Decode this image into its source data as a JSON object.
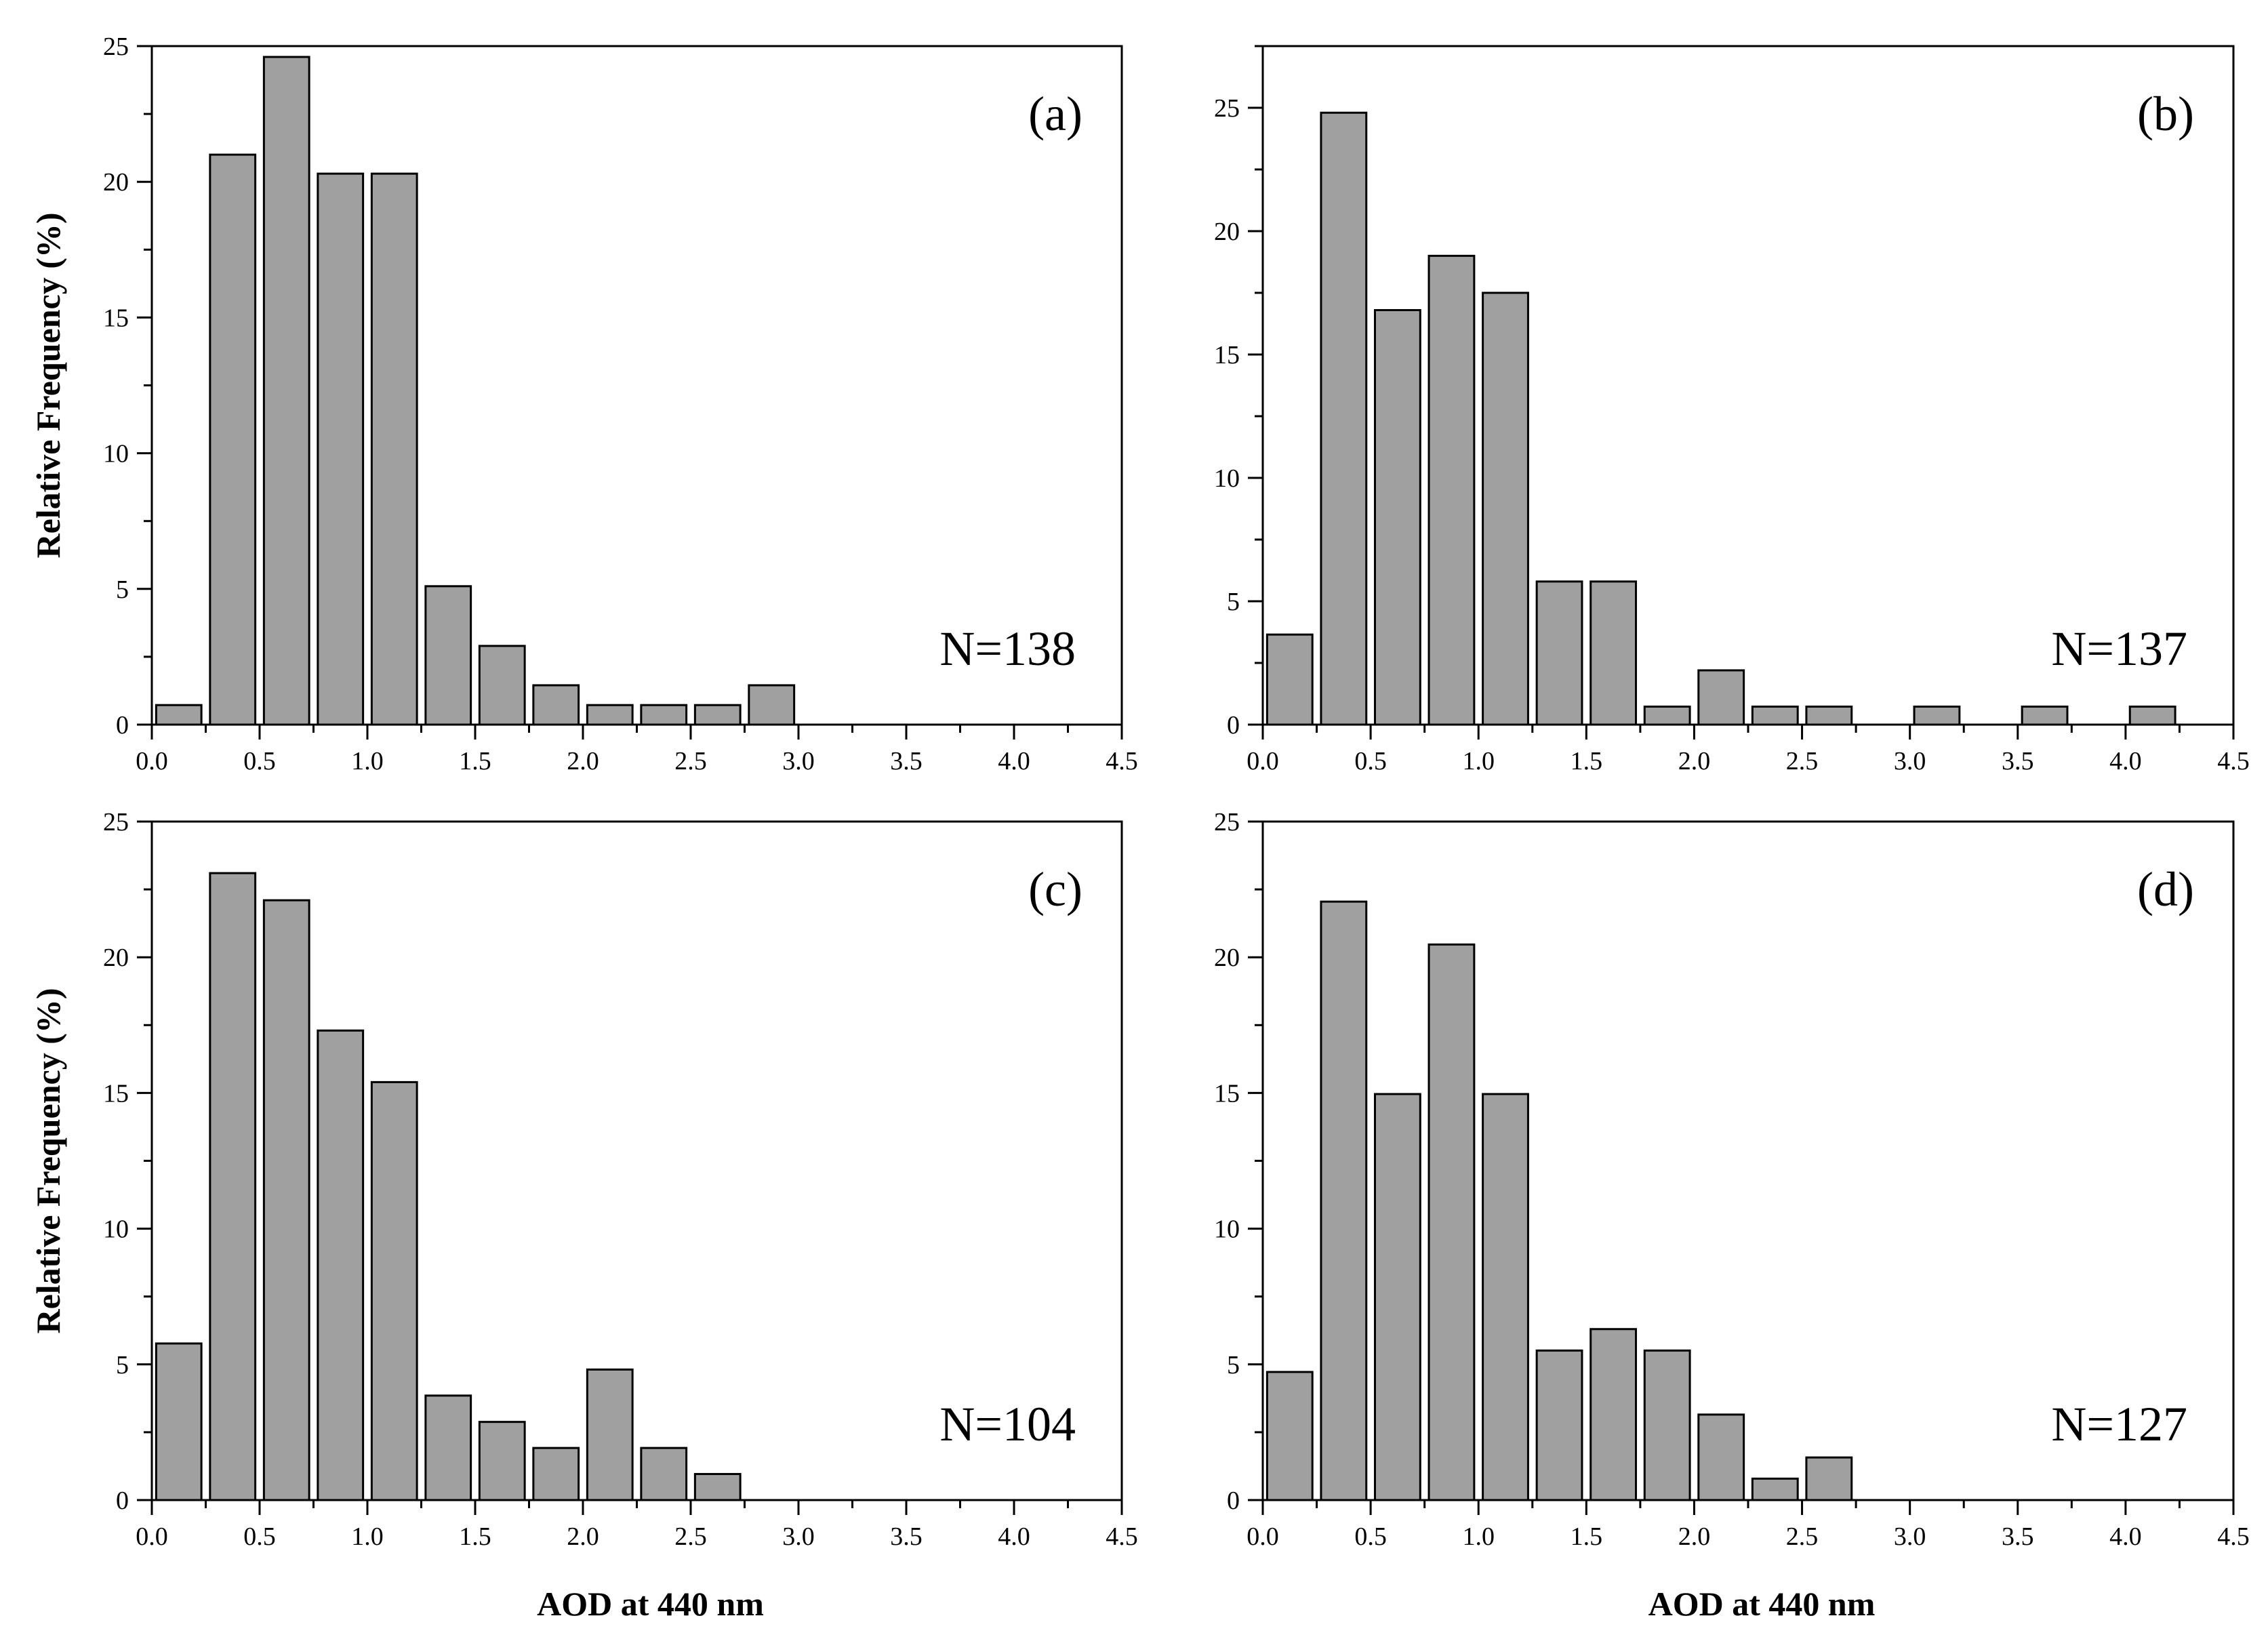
{
  "figure": {
    "bar_color": "#a0a0a0",
    "bar_edge_color": "#000000"
  },
  "chart_data": [
    {
      "type": "bar",
      "panel_label": "(a)",
      "annotation": "N=138",
      "xlabel": "",
      "ylabel": "Relative Frequency (%)",
      "xlim": [
        0,
        4.5
      ],
      "ylim": [
        0,
        25
      ],
      "xticks": [
        "0.0",
        "0.5",
        "1.0",
        "1.5",
        "2.0",
        "2.5",
        "3.0",
        "3.5",
        "4.0",
        "4.5"
      ],
      "yticks": [
        "0",
        "5",
        "10",
        "15",
        "20",
        "25"
      ],
      "bin_centers": [
        0.125,
        0.375,
        0.625,
        0.875,
        1.125,
        1.375,
        1.625,
        1.875,
        2.125,
        2.375,
        2.625,
        2.875
      ],
      "values": [
        0.72,
        21.0,
        24.6,
        20.3,
        20.3,
        5.1,
        2.9,
        1.45,
        0.72,
        0.72,
        0.72,
        1.45
      ]
    },
    {
      "type": "bar",
      "panel_label": "(b)",
      "annotation": "N=137",
      "xlabel": "",
      "ylabel": "",
      "xlim": [
        0,
        4.5
      ],
      "ylim": [
        0,
        27.5
      ],
      "xticks": [
        "0.0",
        "0.5",
        "1.0",
        "1.5",
        "2.0",
        "2.5",
        "3.0",
        "3.5",
        "4.0",
        "4.5"
      ],
      "yticks": [
        "0",
        "5",
        "10",
        "15",
        "20",
        "25"
      ],
      "bin_centers": [
        0.125,
        0.375,
        0.625,
        0.875,
        1.125,
        1.375,
        1.625,
        1.875,
        2.125,
        2.375,
        2.625,
        3.125,
        3.625,
        4.125
      ],
      "values": [
        3.65,
        24.8,
        16.8,
        19.0,
        17.5,
        5.8,
        5.8,
        0.73,
        2.2,
        0.73,
        0.73,
        0.73,
        0.73,
        0.73
      ]
    },
    {
      "type": "bar",
      "panel_label": "(c)",
      "annotation": "N=104",
      "xlabel": "AOD at 440 nm",
      "ylabel": "Relative Frequency (%)",
      "xlim": [
        0,
        4.5
      ],
      "ylim": [
        0,
        25
      ],
      "xticks": [
        "0.0",
        "0.5",
        "1.0",
        "1.5",
        "2.0",
        "2.5",
        "3.0",
        "3.5",
        "4.0",
        "4.5"
      ],
      "yticks": [
        "0",
        "5",
        "10",
        "15",
        "20",
        "25"
      ],
      "bin_centers": [
        0.125,
        0.375,
        0.625,
        0.875,
        1.125,
        1.375,
        1.625,
        1.875,
        2.125,
        2.375,
        2.625
      ],
      "values": [
        5.77,
        23.1,
        22.1,
        17.3,
        15.4,
        3.85,
        2.88,
        1.92,
        4.81,
        1.92,
        0.96
      ]
    },
    {
      "type": "bar",
      "panel_label": "(d)",
      "annotation": "N=127",
      "xlabel": "AOD at 440 nm",
      "ylabel": "",
      "xlim": [
        0,
        4.5
      ],
      "ylim": [
        0,
        25
      ],
      "xticks": [
        "0.0",
        "0.5",
        "1.0",
        "1.5",
        "2.0",
        "2.5",
        "3.0",
        "3.5",
        "4.0",
        "4.5"
      ],
      "yticks": [
        "0",
        "5",
        "10",
        "15",
        "20",
        "25"
      ],
      "bin_centers": [
        0.125,
        0.375,
        0.625,
        0.875,
        1.125,
        1.375,
        1.625,
        1.875,
        2.125,
        2.375,
        2.625
      ],
      "values": [
        4.72,
        22.05,
        14.96,
        20.47,
        14.96,
        5.51,
        6.3,
        5.51,
        3.15,
        0.79,
        1.57
      ]
    }
  ]
}
